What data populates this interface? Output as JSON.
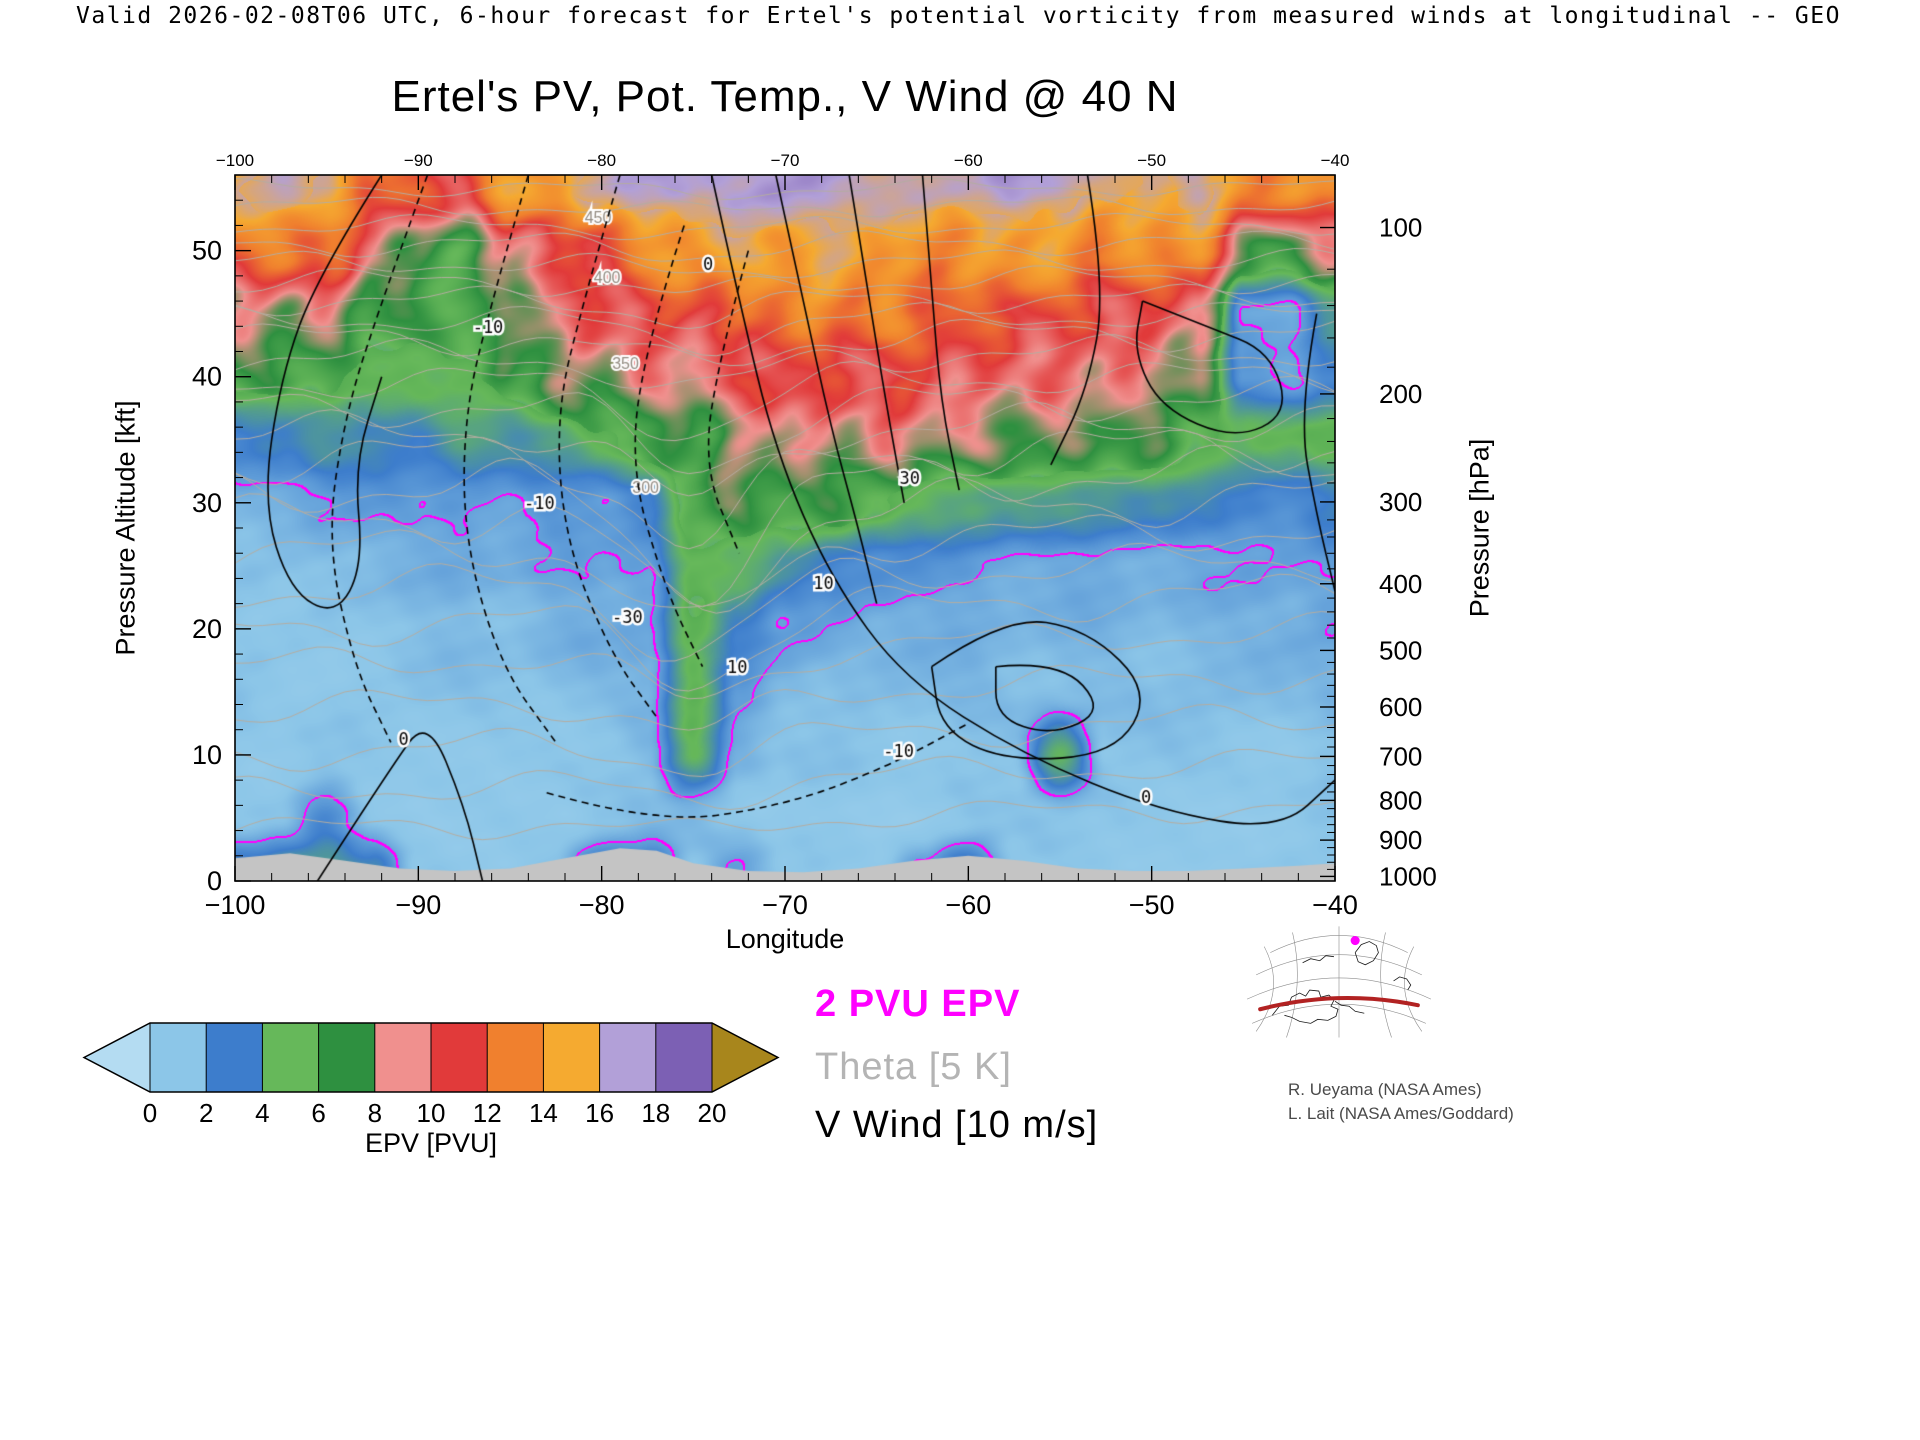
{
  "header": {
    "valid_line": "Valid 2026-02-08T06 UTC, 6-hour forecast for Ertel's potential vorticity from measured winds at longitudinal -- GEO"
  },
  "chart_data": {
    "type": "heatmap",
    "title": "Ertel's PV, Pot. Temp., V Wind @ 40 N",
    "x_label": "Longitude",
    "y_left_label": "Pressure Altitude [kft]",
    "y_right_label": "Pressure [hPa]",
    "x_range": [
      -100,
      -40
    ],
    "y_range_kft": [
      0,
      56
    ],
    "x_lons": [
      -100,
      -97.5,
      -95,
      -92.5,
      -90,
      -87.5,
      -85,
      -82.5,
      -80,
      -77.5,
      -75,
      -72.5,
      -70,
      -67.5,
      -65,
      -62.5,
      -60,
      -57.5,
      -55,
      -52.5,
      -50,
      -47.5,
      -45,
      -42.5,
      -40
    ],
    "y_alts_kft": [
      0,
      5,
      10,
      15,
      20,
      25,
      30,
      35,
      40,
      45,
      50,
      55
    ],
    "epv_grid_pvu": [
      [
        4.5,
        5,
        4.5,
        4,
        1,
        0.9,
        0.9,
        1,
        4,
        4,
        1,
        2.4,
        0.8,
        0.8,
        0.8,
        2.3,
        4.2,
        0.9,
        0.8,
        0.8,
        0.8,
        0.8,
        0.8,
        1,
        1
      ],
      [
        1,
        1,
        2.4,
        1,
        0.9,
        0.9,
        0.9,
        0.9,
        1,
        1.1,
        1.2,
        1,
        0.9,
        0.8,
        0.8,
        0.8,
        0.9,
        0.9,
        1,
        0.9,
        0.8,
        0.8,
        0.9,
        0.9,
        1
      ],
      [
        1,
        0.9,
        0.9,
        0.9,
        0.9,
        1,
        1,
        1,
        1.1,
        1.3,
        4.5,
        1.5,
        1.1,
        1,
        1,
        1,
        1.1,
        1,
        4.5,
        1,
        1,
        1,
        1,
        1,
        1.1
      ],
      [
        1,
        0.9,
        0.9,
        1,
        1.1,
        1.1,
        1.1,
        1.2,
        1.3,
        1.6,
        5.5,
        2.2,
        1.5,
        1.3,
        1.2,
        1.3,
        1.5,
        1.3,
        1.3,
        1.2,
        1.2,
        1.3,
        1.2,
        1.3,
        1.5
      ],
      [
        1.1,
        1,
        1.1,
        1.1,
        1.2,
        1.3,
        1.3,
        1.5,
        1.6,
        1.9,
        5.5,
        3.2,
        2,
        1.8,
        1.5,
        1.5,
        1.6,
        1.5,
        1.5,
        1.5,
        1.4,
        1.5,
        1.5,
        1.5,
        1.8
      ],
      [
        1.2,
        1.2,
        1.4,
        1.4,
        1.5,
        1.7,
        1.7,
        1.8,
        1.8,
        2.2,
        5.5,
        4.8,
        3.5,
        2.8,
        2.3,
        2.2,
        2.2,
        1.9,
        1.8,
        1.8,
        1.8,
        1.8,
        1.8,
        1.8,
        2.2
      ],
      [
        1.6,
        1.8,
        2,
        2,
        2,
        2.4,
        2,
        2.4,
        2.4,
        3,
        6,
        6.5,
        6.5,
        6,
        5.5,
        5,
        4.8,
        4.2,
        3.8,
        3.8,
        3.4,
        3,
        2.8,
        2.8,
        3.4
      ],
      [
        2.6,
        3,
        4,
        3.5,
        3,
        4,
        3.5,
        4.2,
        5,
        6.5,
        7,
        8,
        9,
        9,
        9,
        8.5,
        8,
        8,
        8,
        7.5,
        7,
        6,
        4.8,
        4.8,
        5.5
      ],
      [
        6,
        6,
        6,
        5,
        5,
        5,
        6,
        7.5,
        8,
        9,
        9.5,
        10,
        11,
        11,
        11,
        10.5,
        10,
        10,
        10,
        10,
        9,
        8,
        2.4,
        1.8,
        3
      ],
      [
        9,
        8,
        9,
        7,
        6,
        6,
        7,
        9,
        10,
        11,
        11.5,
        12,
        12.5,
        13,
        13,
        12,
        11.5,
        12,
        11,
        11,
        11,
        10,
        1.8,
        1.5,
        4
      ],
      [
        12,
        13,
        12,
        9,
        7,
        6.5,
        9,
        11,
        12,
        13,
        14,
        15,
        15,
        15,
        15,
        14,
        14,
        14,
        14,
        13,
        13,
        14,
        8,
        7,
        9
      ],
      [
        15,
        16,
        15,
        13,
        12,
        11,
        14,
        15,
        16,
        16.5,
        17,
        17.5,
        17.5,
        17.5,
        17,
        16.5,
        16,
        17,
        17,
        16,
        15,
        17,
        14,
        13,
        14
      ]
    ],
    "epv_levels": [
      0,
      2,
      4,
      6,
      8,
      10,
      12,
      14,
      16,
      18,
      20
    ],
    "epv_colors": [
      "#8cc6e8",
      "#3d7dcc",
      "#66b85a",
      "#2e9040",
      "#f0908e",
      "#e13a3a",
      "#f0802e",
      "#f5aa30",
      "#b2a0d8",
      "#7c60b4"
    ],
    "under_color": "#b4dcf2",
    "over_color": "#a8861c",
    "pv_contour": {
      "level_pvu": 2,
      "color": "#ff00ff"
    },
    "theta_color": "#b5ada1",
    "theta_lines": [
      [
        4,
        2,
        1,
        0.8
      ],
      [
        7,
        2.5,
        1.5,
        0.9
      ],
      [
        10,
        3,
        2,
        1
      ],
      [
        13.5,
        3,
        3,
        1
      ],
      [
        17,
        3,
        4,
        1
      ],
      [
        20,
        3,
        5,
        1.2
      ],
      [
        23,
        2.5,
        6,
        1.2
      ],
      [
        26,
        2,
        7,
        1.3
      ],
      [
        28.5,
        2,
        8,
        1.5
      ],
      [
        31,
        1.5,
        8,
        1.5
      ],
      [
        33.5,
        1,
        7,
        1.5
      ],
      [
        35.5,
        1,
        6,
        1.2
      ],
      [
        37.5,
        0.8,
        5,
        1.2
      ],
      [
        39.5,
        0.6,
        4,
        1
      ],
      [
        41.5,
        0.5,
        3,
        1
      ],
      [
        43,
        0.5,
        2.5,
        1
      ],
      [
        44.5,
        0.4,
        2,
        0.8
      ],
      [
        46,
        0.3,
        1.5,
        0.8
      ],
      [
        47.5,
        0.3,
        1.2,
        0.8
      ],
      [
        49,
        0.2,
        1,
        0.7
      ],
      [
        50.5,
        0.2,
        0.8,
        0.7
      ],
      [
        52,
        0.1,
        0.6,
        0.6
      ],
      [
        53.5,
        0.1,
        0.5,
        0.6
      ],
      [
        55,
        0,
        0.4,
        0.5
      ]
    ],
    "theta_labels": [
      {
        "text": "300",
        "lon": -77.6,
        "alt": 30.8
      },
      {
        "text": "350",
        "lon": -78.7,
        "alt": 40.6
      },
      {
        "text": "400",
        "lon": -79.7,
        "alt": 47.4
      },
      {
        "text": "450",
        "lon": -80.2,
        "alt": 52.2
      }
    ],
    "wind_color": "#000000",
    "wind_contours": [
      {
        "style": "solid",
        "pts": [
          [
            -92,
            56
          ],
          [
            -95.5,
            48
          ],
          [
            -97.5,
            40
          ],
          [
            -98.5,
            30
          ],
          [
            -97,
            23
          ],
          [
            -94.5,
            21
          ],
          [
            -93,
            25
          ],
          [
            -93.5,
            33
          ],
          [
            -92,
            40
          ]
        ]
      },
      {
        "style": "solid",
        "pts": [
          [
            -95.5,
            0
          ],
          [
            -91.5,
            9
          ],
          [
            -89.5,
            13
          ],
          [
            -87.5,
            6
          ],
          [
            -86.5,
            0
          ]
        ]
      },
      {
        "style": "solid",
        "pts": [
          [
            -74,
            56
          ],
          [
            -72.5,
            46
          ],
          [
            -70.5,
            34
          ],
          [
            -67.5,
            24
          ],
          [
            -63.5,
            16
          ],
          [
            -57,
            10
          ],
          [
            -49.5,
            5.5
          ],
          [
            -43,
            4
          ],
          [
            -40,
            8
          ]
        ]
      },
      {
        "style": "solid",
        "pts": [
          [
            -70.5,
            56
          ],
          [
            -69,
            46
          ],
          [
            -67.5,
            36
          ],
          [
            -66,
            28
          ],
          [
            -65,
            22
          ]
        ]
      },
      {
        "style": "solid",
        "pts": [
          [
            -66.5,
            56
          ],
          [
            -65.5,
            47
          ],
          [
            -64.5,
            38
          ],
          [
            -63.5,
            30
          ]
        ]
      },
      {
        "style": "solid",
        "pts": [
          [
            -62.5,
            56
          ],
          [
            -62,
            47
          ],
          [
            -61.5,
            38
          ],
          [
            -60.5,
            31
          ]
        ]
      },
      {
        "style": "solid",
        "pts": [
          [
            -62,
            17
          ],
          [
            -58,
            21
          ],
          [
            -53.5,
            20
          ],
          [
            -50,
            15
          ],
          [
            -52,
            10
          ],
          [
            -58,
            9.5
          ],
          [
            -61.5,
            12
          ],
          [
            -62,
            17
          ]
        ]
      },
      {
        "style": "solid",
        "pts": [
          [
            -58.5,
            17
          ],
          [
            -55,
            17.5
          ],
          [
            -52.5,
            13.5
          ],
          [
            -55.5,
            11.5
          ],
          [
            -58.5,
            13
          ],
          [
            -58.5,
            17
          ]
        ]
      },
      {
        "style": "solid",
        "pts": [
          [
            -50.5,
            46
          ],
          [
            -47,
            44
          ],
          [
            -43.5,
            42
          ],
          [
            -42.5,
            37
          ],
          [
            -45.5,
            35
          ],
          [
            -49.5,
            37.5
          ],
          [
            -51,
            42
          ],
          [
            -50.5,
            46
          ]
        ]
      },
      {
        "style": "solid",
        "pts": [
          [
            -53.5,
            56
          ],
          [
            -52.5,
            47
          ],
          [
            -53.5,
            39
          ],
          [
            -55.5,
            33
          ]
        ]
      },
      {
        "style": "solid",
        "pts": [
          [
            -41,
            45
          ],
          [
            -42,
            37
          ],
          [
            -41,
            29
          ],
          [
            -40,
            23
          ]
        ]
      },
      {
        "style": "dashed",
        "pts": [
          [
            -89.5,
            56
          ],
          [
            -92,
            46
          ],
          [
            -94,
            37
          ],
          [
            -95,
            27
          ],
          [
            -93.5,
            17
          ],
          [
            -91.5,
            11
          ]
        ]
      },
      {
        "style": "dashed",
        "pts": [
          [
            -84,
            56
          ],
          [
            -86,
            46
          ],
          [
            -87.5,
            37
          ],
          [
            -87.5,
            27
          ],
          [
            -85.5,
            17
          ],
          [
            -82.5,
            11
          ]
        ]
      },
      {
        "style": "dashed",
        "pts": [
          [
            -79,
            56
          ],
          [
            -81,
            46
          ],
          [
            -82.5,
            37
          ],
          [
            -82,
            27
          ],
          [
            -79.5,
            18
          ],
          [
            -77,
            13
          ]
        ]
      },
      {
        "style": "dashed",
        "pts": [
          [
            -75.5,
            52
          ],
          [
            -77.5,
            43
          ],
          [
            -78.5,
            33
          ],
          [
            -76.5,
            23
          ],
          [
            -74.5,
            17
          ]
        ]
      },
      {
        "style": "dashed",
        "pts": [
          [
            -72,
            50
          ],
          [
            -73.5,
            42
          ],
          [
            -74.5,
            33
          ],
          [
            -72.5,
            26
          ]
        ]
      },
      {
        "style": "dashed",
        "pts": [
          [
            -83,
            7
          ],
          [
            -77,
            4.5
          ],
          [
            -70,
            6
          ],
          [
            -64.5,
            9
          ],
          [
            -60,
            12.5
          ]
        ]
      }
    ],
    "wind_labels": [
      {
        "text": "0",
        "lon": -90.8,
        "alt": 10.8
      },
      {
        "text": "0",
        "lon": -74.2,
        "alt": 48.5
      },
      {
        "text": "10",
        "lon": -67.9,
        "alt": 23.2
      },
      {
        "text": "10",
        "lon": -72.6,
        "alt": 16.5
      },
      {
        "text": "-10",
        "lon": -83.4,
        "alt": 29.5
      },
      {
        "text": "-10",
        "lon": -86.2,
        "alt": 43.5
      },
      {
        "text": "-30",
        "lon": -78.6,
        "alt": 20.5
      },
      {
        "text": "0",
        "lon": -50.3,
        "alt": 6.2
      },
      {
        "text": "-10",
        "lon": -63.8,
        "alt": 9.8
      },
      {
        "text": "30",
        "lon": -63.2,
        "alt": 31.5
      }
    ],
    "terrain": {
      "color": "#c4c4c4",
      "profile": [
        [
          -100,
          1.8
        ],
        [
          -97,
          2.2
        ],
        [
          -94,
          1.6
        ],
        [
          -91,
          1.0
        ],
        [
          -88,
          0.8
        ],
        [
          -85,
          1.0
        ],
        [
          -82,
          1.8
        ],
        [
          -79,
          2.6
        ],
        [
          -77,
          2.4
        ],
        [
          -75,
          1.4
        ],
        [
          -72,
          0.8
        ],
        [
          -69,
          0.7
        ],
        [
          -66,
          1.0
        ],
        [
          -63,
          1.6
        ],
        [
          -60,
          2.0
        ],
        [
          -57,
          1.6
        ],
        [
          -54,
          1.0
        ],
        [
          -51,
          0.8
        ],
        [
          -48,
          0.8
        ],
        [
          -45,
          1.0
        ],
        [
          -42,
          1.2
        ],
        [
          -40,
          1.4
        ]
      ]
    },
    "axes": {
      "x_major_ticks": [
        -100,
        -90,
        -80,
        -70,
        -60,
        -50,
        -40
      ],
      "x_minor_step": 2,
      "y_left_major_ticks": [
        0,
        10,
        20,
        30,
        40,
        50
      ],
      "y_left_minor_step": 2,
      "y_right_ticks_hpa": [
        100,
        200,
        300,
        400,
        500,
        600,
        700,
        800,
        900,
        1000
      ]
    }
  },
  "colorbar": {
    "label": "EPV [PVU]",
    "tick_values": [
      0,
      2,
      4,
      6,
      8,
      10,
      12,
      14,
      16,
      18,
      20
    ]
  },
  "legend": {
    "items": [
      {
        "text": "2 PVU EPV",
        "color": "#ff00ff",
        "bold": true
      },
      {
        "text": "Theta [5 K]",
        "color": "#b4b4b4",
        "bold": false
      },
      {
        "text": "V Wind [10 m/s]",
        "color": "#000000",
        "bold": false
      }
    ]
  },
  "inset_map": {
    "track_color": "#b22222",
    "dot_color": "#ff00ff"
  },
  "credits": [
    "R. Ueyama (NASA Ames)",
    "L. Lait (NASA Ames/Goddard)"
  ]
}
